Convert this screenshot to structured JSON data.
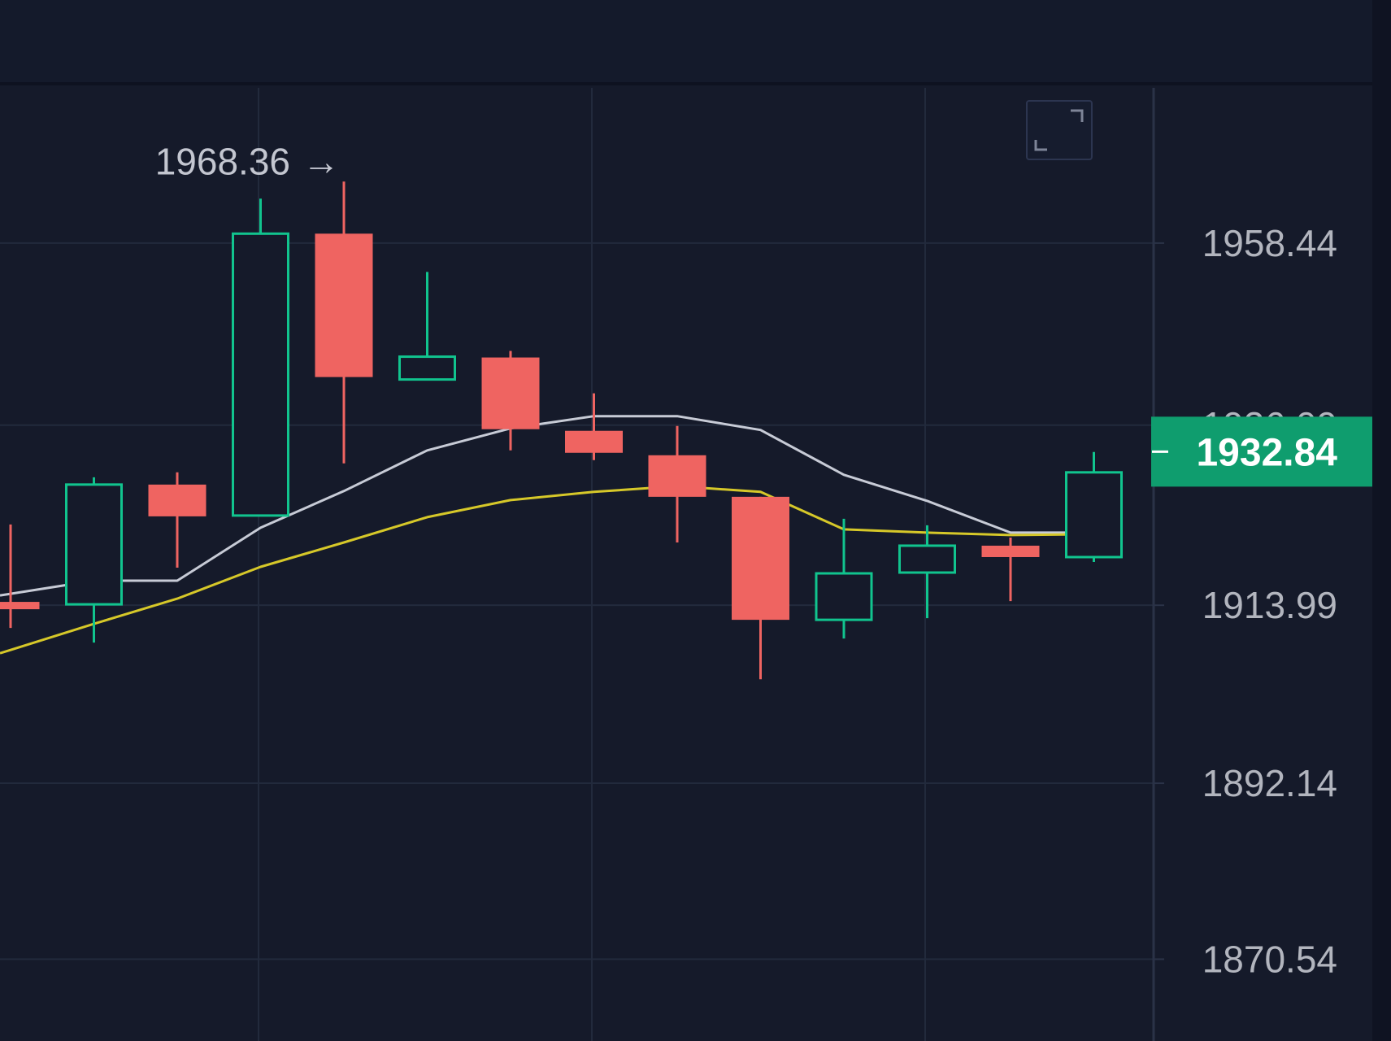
{
  "theme": {
    "background": "#151a2a",
    "top_bar": "#141a2b",
    "grid": "#222a3c",
    "axis_divider": "#2a3247",
    "up_color": "#11c48e",
    "down_color": "#ef6461",
    "ma_fast_color": "#c7cbd6",
    "ma_slow_color": "#d6c829",
    "last_price_bg": "#0f9d6e",
    "axis_text": "#b2b5be"
  },
  "icons": {
    "expand": "fullscreen-expand-icon"
  },
  "chart_data": {
    "type": "candlestick",
    "y_axis": {
      "position": "right",
      "ticks": [
        "1958.44",
        "1936.09",
        "1913.99",
        "1892.14",
        "1870.54"
      ],
      "tick_values": [
        1958.44,
        1936.09,
        1913.99,
        1892.14,
        1870.54
      ]
    },
    "ylim": [
      1860.5,
      1977.5
    ],
    "grid": true,
    "high_marker": {
      "label": "1968.36",
      "arrow": "→",
      "value": 1968.36
    },
    "last_price": {
      "label": "1932.84",
      "value": 1932.84
    },
    "candles": [
      {
        "open": 1914.4,
        "close": 1913.5,
        "high": 1923.9,
        "low": 1911.2
      },
      {
        "open": 1914.1,
        "close": 1928.8,
        "high": 1929.7,
        "low": 1909.4
      },
      {
        "open": 1928.8,
        "close": 1924.9,
        "high": 1930.3,
        "low": 1918.6
      },
      {
        "open": 1925.0,
        "close": 1959.6,
        "high": 1963.9,
        "low": 1925.0
      },
      {
        "open": 1959.6,
        "close": 1942.0,
        "high": 1966.0,
        "low": 1931.4
      },
      {
        "open": 1941.7,
        "close": 1944.5,
        "high": 1954.9,
        "low": 1941.7
      },
      {
        "open": 1944.4,
        "close": 1935.6,
        "high": 1945.2,
        "low": 1933.0
      },
      {
        "open": 1935.4,
        "close": 1932.7,
        "high": 1940.0,
        "low": 1931.8
      },
      {
        "open": 1932.4,
        "close": 1927.3,
        "high": 1936.0,
        "low": 1921.7
      },
      {
        "open": 1927.3,
        "close": 1912.2,
        "high": 1927.3,
        "low": 1904.9
      },
      {
        "open": 1912.2,
        "close": 1917.9,
        "high": 1924.6,
        "low": 1909.9
      },
      {
        "open": 1918.0,
        "close": 1921.3,
        "high": 1923.8,
        "low": 1912.4
      },
      {
        "open": 1921.3,
        "close": 1919.9,
        "high": 1922.3,
        "low": 1914.5
      },
      {
        "open": 1919.9,
        "close": 1930.3,
        "high": 1932.8,
        "low": 1919.3
      }
    ],
    "series": [
      {
        "values": [
          1915.4,
          1917.0,
          1917.0,
          1923.5,
          1928.0,
          1933.0,
          1935.7,
          1937.2,
          1937.2,
          1935.5,
          1930.0,
          1926.8,
          1922.9,
          1922.9
        ]
      },
      {
        "values": [
          1908.5,
          1911.7,
          1914.8,
          1918.7,
          1921.7,
          1924.8,
          1926.9,
          1927.9,
          1928.6,
          1927.9,
          1923.3,
          1922.9,
          1922.6,
          1922.7
        ]
      }
    ]
  }
}
